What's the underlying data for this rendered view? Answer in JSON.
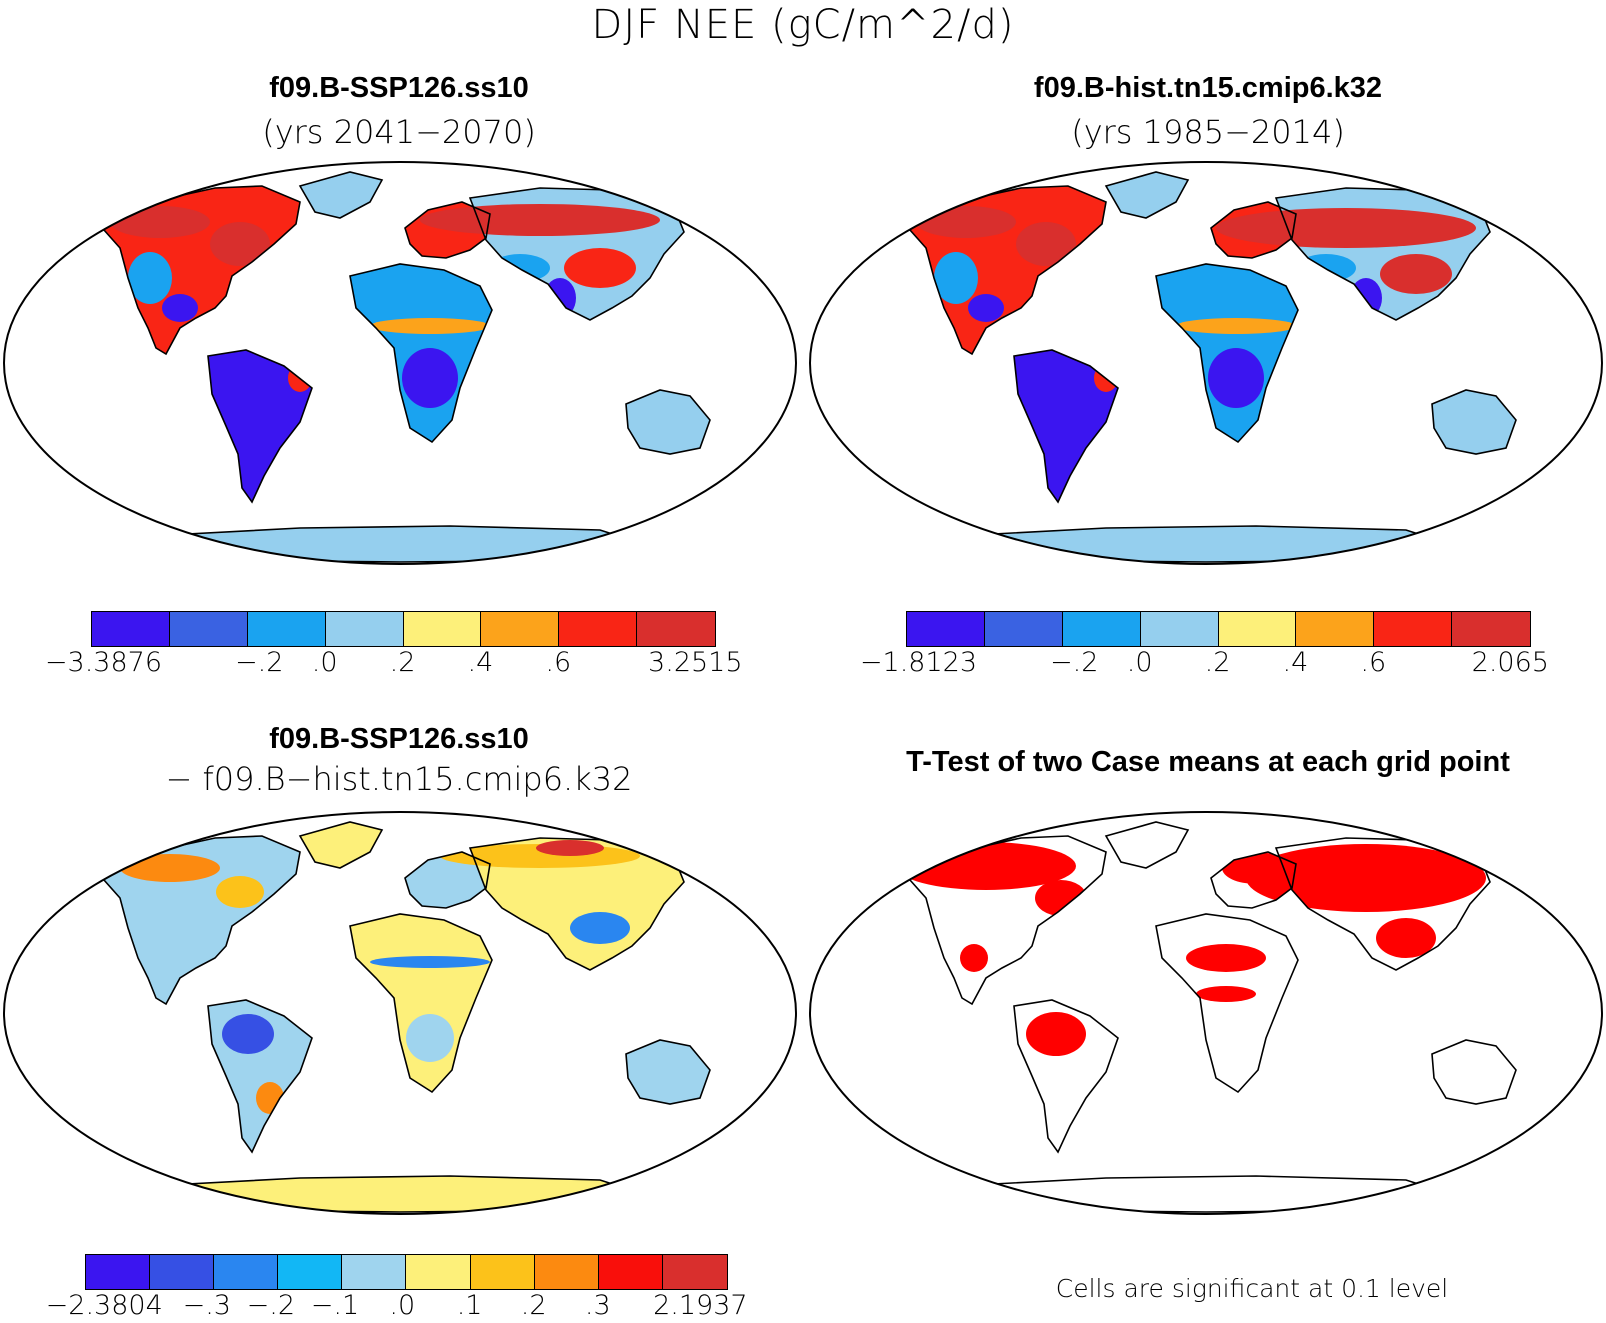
{
  "title": "DJF NEE (gC/m^2/d)",
  "colors": {
    "land_outline": "#000000",
    "ocean": "#ffffff",
    "significance": "#ff0000"
  },
  "panels": {
    "case1": {
      "title": "f09.B-SSP126.ss10",
      "subtitle": "(yrs 2041−2070)",
      "colorbar": {
        "colors": [
          "#3b15f0",
          "#3a62e2",
          "#1aa3f0",
          "#95cfee",
          "#fdf07a",
          "#fca31b",
          "#f92515",
          "#d92f2d"
        ],
        "ticks": [
          "−3.3876",
          "−.2",
          ".0",
          ".2",
          ".4",
          ".6",
          "3.2515"
        ]
      }
    },
    "case2": {
      "title": "f09.B-hist.tn15.cmip6.k32",
      "subtitle": "(yrs 1985−2014)",
      "colorbar": {
        "colors": [
          "#3b15f0",
          "#3a62e2",
          "#1aa3f0",
          "#95cfee",
          "#fdf07a",
          "#fca31b",
          "#f92515",
          "#d92f2d"
        ],
        "ticks": [
          "−1.8123",
          "−.2",
          ".0",
          ".2",
          ".4",
          ".6",
          "2.065"
        ]
      }
    },
    "diff": {
      "title": "f09.B-SSP126.ss10",
      "subtitle": "− f09.B−hist.tn15.cmip6.k32",
      "colorbar": {
        "colors": [
          "#3b15f0",
          "#3650e4",
          "#2a86f0",
          "#12b7f5",
          "#9fd4ee",
          "#fdf07a",
          "#fcc21a",
          "#fc8a10",
          "#f90f0b",
          "#d92f2d"
        ],
        "ticks": [
          "−2.3804",
          "−.3",
          "−.2",
          "−.1",
          ".0",
          ".1",
          ".2",
          ".3",
          "2.1937"
        ]
      }
    },
    "ttest": {
      "title": "T-Test of two Case means at each grid point",
      "note": "Cells are significant at 0.1 level"
    }
  }
}
